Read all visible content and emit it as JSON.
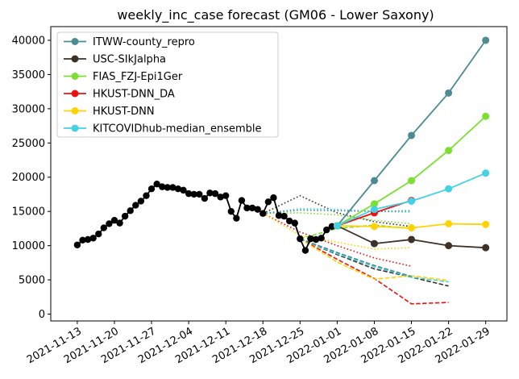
{
  "chart_data": {
    "type": "line",
    "title": "weekly_inc_case forecast (GM06 - Lower Saxony)",
    "xlabel": "",
    "ylabel": "",
    "ylim": [
      -1000,
      42000
    ],
    "xlim": [
      "2021-11-08",
      "2022-02-02"
    ],
    "grid": false,
    "legend_placement": "top-left",
    "x_ticks": [
      "2021-11-13",
      "2021-11-20",
      "2021-11-27",
      "2021-12-04",
      "2021-12-11",
      "2021-12-18",
      "2021-12-25",
      "2022-01-01",
      "2022-01-08",
      "2022-01-15",
      "2022-01-22",
      "2022-01-29"
    ],
    "y_ticks": [
      0,
      5000,
      10000,
      15000,
      20000,
      25000,
      30000,
      35000,
      40000
    ],
    "observed": {
      "color": "#000000",
      "points": [
        [
          "2021-11-13",
          10100
        ],
        [
          "2021-11-14",
          10800
        ],
        [
          "2021-11-15",
          10900
        ],
        [
          "2021-11-16",
          11100
        ],
        [
          "2021-11-17",
          11700
        ],
        [
          "2021-11-18",
          12600
        ],
        [
          "2021-11-19",
          13200
        ],
        [
          "2021-11-20",
          13700
        ],
        [
          "2021-11-21",
          13300
        ],
        [
          "2021-11-22",
          14300
        ],
        [
          "2021-11-23",
          15100
        ],
        [
          "2021-11-24",
          15900
        ],
        [
          "2021-11-25",
          16500
        ],
        [
          "2021-11-26",
          17300
        ],
        [
          "2021-11-27",
          18300
        ],
        [
          "2021-11-28",
          19000
        ],
        [
          "2021-11-29",
          18600
        ],
        [
          "2021-11-30",
          18500
        ],
        [
          "2021-12-01",
          18500
        ],
        [
          "2021-12-02",
          18300
        ],
        [
          "2021-12-03",
          18100
        ],
        [
          "2021-12-04",
          17600
        ],
        [
          "2021-12-05",
          17500
        ],
        [
          "2021-12-06",
          17500
        ],
        [
          "2021-12-07",
          16900
        ],
        [
          "2021-12-08",
          17700
        ],
        [
          "2021-12-09",
          17600
        ],
        [
          "2021-12-10",
          17100
        ],
        [
          "2021-12-11",
          17300
        ],
        [
          "2021-12-12",
          15000
        ],
        [
          "2021-12-13",
          14000
        ],
        [
          "2021-12-14",
          16600
        ],
        [
          "2021-12-15",
          15500
        ],
        [
          "2021-12-16",
          15500
        ],
        [
          "2021-12-17",
          15300
        ],
        [
          "2021-12-18",
          14700
        ],
        [
          "2021-12-19",
          16400
        ],
        [
          "2021-12-20",
          17000
        ],
        [
          "2021-12-21",
          14400
        ],
        [
          "2021-12-22",
          14300
        ],
        [
          "2021-12-23",
          13600
        ],
        [
          "2021-12-24",
          13300
        ],
        [
          "2021-12-25",
          11000
        ],
        [
          "2021-12-26",
          9300
        ],
        [
          "2021-12-27",
          11000
        ],
        [
          "2021-12-28",
          10900
        ],
        [
          "2021-12-29",
          11100
        ],
        [
          "2021-12-30",
          12300
        ],
        [
          "2021-12-31",
          12800
        ],
        [
          "2022-01-01",
          12900
        ]
      ]
    },
    "series": [
      {
        "name": "ITWW-county_repro",
        "color": "#4d8b93",
        "points": [
          [
            "2022-01-01",
            12900
          ],
          [
            "2022-01-08",
            19500
          ],
          [
            "2022-01-15",
            26100
          ],
          [
            "2022-01-22",
            32300
          ],
          [
            "2022-01-29",
            40000
          ]
        ]
      },
      {
        "name": "USC-SIkJalpha",
        "color": "#3d3128",
        "points": [
          [
            "2022-01-01",
            12900
          ],
          [
            "2022-01-08",
            10300
          ],
          [
            "2022-01-15",
            10900
          ],
          [
            "2022-01-22",
            10000
          ],
          [
            "2022-01-29",
            9700
          ]
        ]
      },
      {
        "name": "FIAS_FZJ-Epi1Ger",
        "color": "#7be02f",
        "points": [
          [
            "2022-01-01",
            12900
          ],
          [
            "2022-01-08",
            16100
          ],
          [
            "2022-01-15",
            19500
          ],
          [
            "2022-01-22",
            23900
          ],
          [
            "2022-01-29",
            28900
          ]
        ]
      },
      {
        "name": "HKUST-DNN_DA",
        "color": "#ee1010",
        "points": [
          [
            "2022-01-01",
            12900
          ],
          [
            "2022-01-08",
            14800
          ],
          [
            "2022-01-15",
            16600
          ]
        ]
      },
      {
        "name": "HKUST-DNN",
        "color": "#ffd200",
        "points": [
          [
            "2022-01-01",
            12900
          ],
          [
            "2022-01-08",
            12800
          ],
          [
            "2022-01-15",
            12600
          ],
          [
            "2022-01-22",
            13200
          ],
          [
            "2022-01-29",
            13100
          ]
        ]
      },
      {
        "name": "KITCOVIDhub-median_ensemble",
        "color": "#43d2e3",
        "points": [
          [
            "2022-01-01",
            12900
          ],
          [
            "2022-01-08",
            15300
          ],
          [
            "2022-01-15",
            16500
          ],
          [
            "2022-01-22",
            18300
          ],
          [
            "2022-01-29",
            20600
          ]
        ]
      }
    ],
    "past_forecasts": [
      {
        "color": "#3d3128",
        "dash": "dotted",
        "points": [
          [
            "2021-12-18",
            14700
          ],
          [
            "2021-12-25",
            17300
          ],
          [
            "2022-01-01",
            14800
          ],
          [
            "2022-01-08",
            13500
          ],
          [
            "2022-01-15",
            12800
          ]
        ]
      },
      {
        "color": "#3d3128",
        "dash": "dashed",
        "points": [
          [
            "2021-12-25",
            11000
          ],
          [
            "2022-01-01",
            8700
          ],
          [
            "2022-01-08",
            6600
          ],
          [
            "2022-01-15",
            5400
          ],
          [
            "2022-01-22",
            4100
          ]
        ]
      },
      {
        "color": "#ee1010",
        "dash": "dotted",
        "points": [
          [
            "2021-12-18",
            14700
          ],
          [
            "2021-12-25",
            12000
          ],
          [
            "2022-01-01",
            10000
          ],
          [
            "2022-01-08",
            8200
          ],
          [
            "2022-01-15",
            7000
          ]
        ]
      },
      {
        "color": "#ee1010",
        "dash": "dashed",
        "points": [
          [
            "2021-12-25",
            11000
          ],
          [
            "2022-01-01",
            8000
          ],
          [
            "2022-01-08",
            5200
          ],
          [
            "2022-01-15",
            1500
          ],
          [
            "2022-01-22",
            1700
          ]
        ]
      },
      {
        "color": "#ffd200",
        "dash": "dotted",
        "points": [
          [
            "2021-12-18",
            14700
          ],
          [
            "2021-12-25",
            11500
          ],
          [
            "2022-01-01",
            10500
          ],
          [
            "2022-01-08",
            9500
          ],
          [
            "2022-01-15",
            9700
          ]
        ]
      },
      {
        "color": "#ffd200",
        "dash": "dashed",
        "points": [
          [
            "2021-12-25",
            11000
          ],
          [
            "2022-01-01",
            7600
          ],
          [
            "2022-01-08",
            5100
          ],
          [
            "2022-01-15",
            5600
          ],
          [
            "2022-01-22",
            4900
          ]
        ]
      },
      {
        "color": "#7be02f",
        "dash": "dotted",
        "points": [
          [
            "2021-12-18",
            14700
          ],
          [
            "2021-12-25",
            14800
          ],
          [
            "2022-01-01",
            14500
          ],
          [
            "2022-01-08",
            13700
          ],
          [
            "2022-01-15",
            13200
          ]
        ]
      },
      {
        "color": "#7be02f",
        "dash": "dashed",
        "points": [
          [
            "2021-12-25",
            11000
          ],
          [
            "2022-01-01",
            12500
          ],
          [
            "2022-01-08",
            13000
          ],
          [
            "2022-01-15",
            12500
          ]
        ]
      },
      {
        "color": "#43d2e3",
        "dash": "dotted",
        "points": [
          [
            "2021-12-18",
            14700
          ],
          [
            "2021-12-25",
            15400
          ],
          [
            "2022-01-01",
            15300
          ],
          [
            "2022-01-08",
            15000
          ],
          [
            "2022-01-15",
            14900
          ]
        ]
      },
      {
        "color": "#43d2e3",
        "dash": "dashed",
        "points": [
          [
            "2021-12-25",
            11000
          ],
          [
            "2022-01-01",
            8800
          ],
          [
            "2022-01-08",
            6900
          ],
          [
            "2022-01-15",
            5400
          ],
          [
            "2022-01-22",
            4700
          ]
        ]
      },
      {
        "color": "#4d8b93",
        "dash": "dotted",
        "points": [
          [
            "2021-12-18",
            14700
          ],
          [
            "2021-12-25",
            15200
          ],
          [
            "2022-01-01",
            15100
          ],
          [
            "2022-01-08",
            15000
          ],
          [
            "2022-01-15",
            15100
          ]
        ]
      },
      {
        "color": "#4d8b93",
        "dash": "dashed",
        "points": [
          [
            "2021-12-25",
            11000
          ],
          [
            "2022-01-01",
            9000
          ],
          [
            "2022-01-08",
            7100
          ],
          [
            "2022-01-15",
            5500
          ]
        ]
      }
    ]
  }
}
